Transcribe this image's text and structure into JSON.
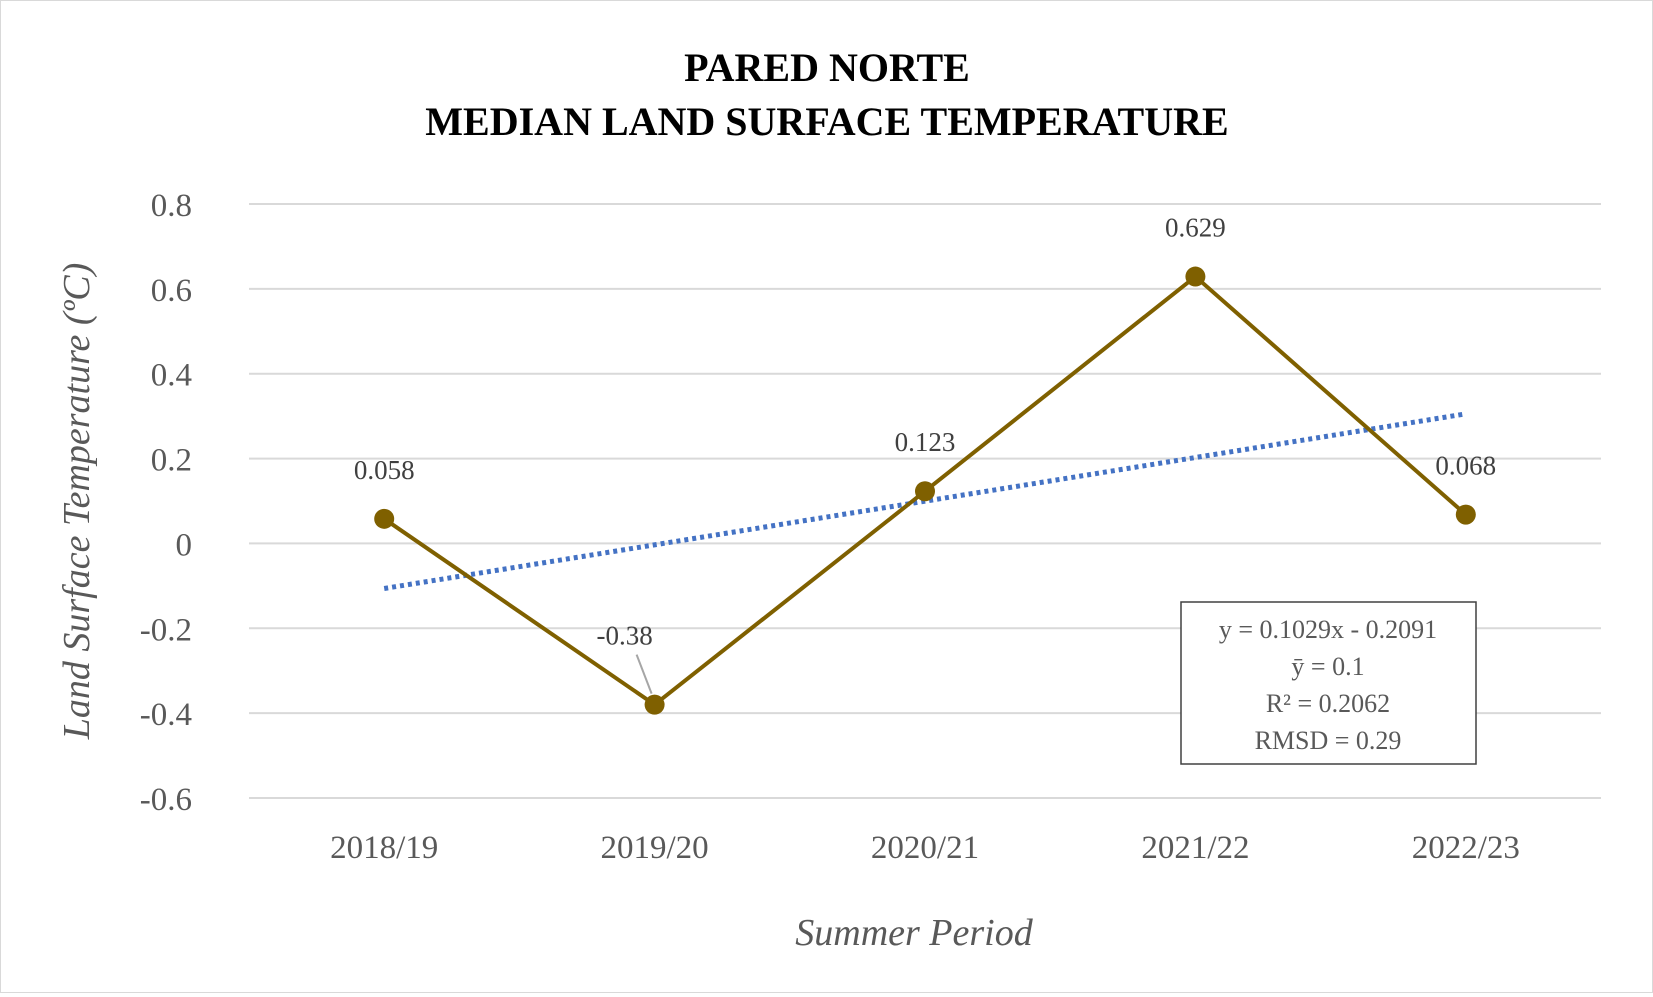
{
  "chart_data": {
    "type": "line",
    "title": [
      "PARED NORTE",
      "MEDIAN LAND SURFACE TEMPERATURE"
    ],
    "xlabel": "Summer Period",
    "ylabel": "Land Surface Temperature (ºC)",
    "categories": [
      "2018/19",
      "2019/20",
      "2020/21",
      "2021/22",
      "2022/23"
    ],
    "series": [
      {
        "values": [
          0.058,
          -0.38,
          0.123,
          0.629,
          0.068
        ],
        "data_labels": [
          "0.058",
          "-0.38",
          "0.123",
          "0.629",
          "0.068"
        ],
        "color": "#7f6000"
      }
    ],
    "trendline": {
      "type": "linear",
      "style": "dotted",
      "color": "#4472c4",
      "slope": 0.1029,
      "intercept": -0.2091
    },
    "stats_box": [
      "y = 0.1029x - 0.2091",
      "ȳ =  0.1",
      "R² = 0.2062",
      "RMSD = 0.29"
    ],
    "yticks": [
      "0.8",
      "0.6",
      "0.4",
      "0.2",
      "0",
      "-0.2",
      "-0.4",
      "-0.6"
    ],
    "ylim": [
      -0.6,
      0.8
    ],
    "ytick_step": 0.2,
    "grid": true,
    "legend": "none"
  }
}
